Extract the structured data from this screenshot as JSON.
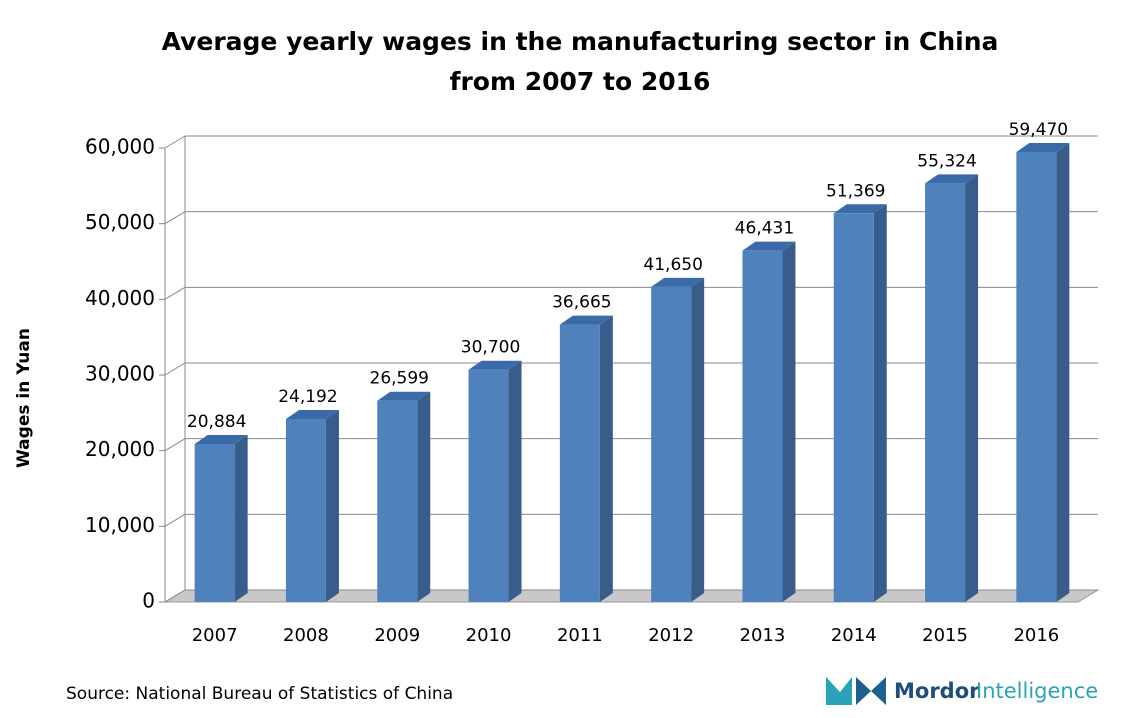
{
  "chart_data": {
    "type": "bar3d",
    "title": "Average yearly wages in the manufacturing sector in China from 2007 to 2016",
    "y_label": "Wages in Yuan",
    "source": "Source: National Bureau of Statistics of China",
    "categories": [
      "2007",
      "2008",
      "2009",
      "2010",
      "2011",
      "2012",
      "2013",
      "2014",
      "2015",
      "2016"
    ],
    "values": [
      20884,
      24192,
      26599,
      30700,
      36665,
      41650,
      46431,
      51369,
      55324,
      59470
    ],
    "value_labels": [
      "20,884",
      "24,192",
      "26,599",
      "30,700",
      "36,665",
      "41,650",
      "46,431",
      "51,369",
      "55,324",
      "59,470"
    ],
    "color": "#4f81bd",
    "ylim": [
      0,
      60000
    ],
    "yticks": [
      0,
      {
        "value": 10000,
        "label": "10,000"
      },
      {
        "value": 20000,
        "label": "20,000"
      },
      {
        "value": 30000,
        "label": "30,000"
      },
      {
        "value": 40000,
        "label": "40,000"
      },
      {
        "value": 50000,
        "label": "50,000"
      },
      {
        "value": 60000,
        "label": "60,000"
      }
    ],
    "grid": true
  },
  "logo": {
    "brand": "Mordor",
    "suffix": "Intelligence"
  }
}
